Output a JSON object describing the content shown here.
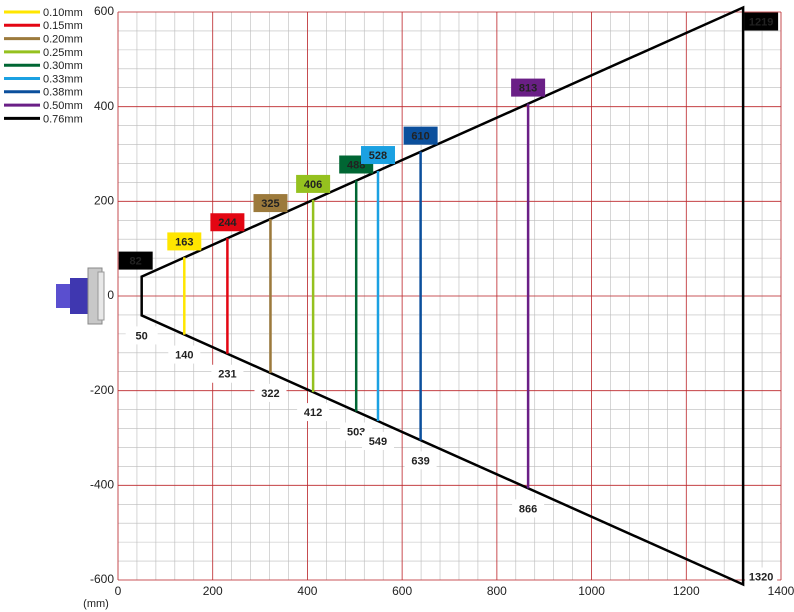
{
  "chart_data": {
    "type": "reading-field",
    "x_unit_label": "(mm)",
    "xlim": [
      0,
      1400
    ],
    "xticks": [
      0,
      200,
      400,
      600,
      800,
      1000,
      1200,
      1400
    ],
    "ylim": [
      -600,
      600
    ],
    "yticks": [
      -600,
      -400,
      -200,
      0,
      200,
      400,
      600
    ],
    "grid": true,
    "legend": "top-left",
    "series": [
      {
        "name": "0.10mm",
        "color": "#ffe600",
        "distances": [
          140
        ],
        "widths": [
          163
        ]
      },
      {
        "name": "0.15mm",
        "color": "#e30613",
        "distances": [
          231
        ],
        "widths": [
          244
        ]
      },
      {
        "name": "0.20mm",
        "color": "#9c7a3c",
        "distances": [
          322
        ],
        "widths": [
          325
        ]
      },
      {
        "name": "0.25mm",
        "color": "#95c11f",
        "distances": [
          412
        ],
        "widths": [
          406
        ]
      },
      {
        "name": "0.30mm",
        "color": "#006633",
        "distances": [
          503
        ],
        "widths": [
          488
        ]
      },
      {
        "name": "0.33mm",
        "color": "#1ba1e2",
        "distances": [
          549
        ],
        "widths": [
          528
        ]
      },
      {
        "name": "0.38mm",
        "color": "#0b4f9c",
        "distances": [
          639
        ],
        "widths": [
          610
        ]
      },
      {
        "name": "0.50mm",
        "color": "#6a1f86",
        "distances": [
          866
        ],
        "widths": [
          813
        ]
      },
      {
        "name": "0.76mm",
        "color": "#000000",
        "distances": [
          50,
          1320
        ],
        "widths": [
          82,
          1219
        ]
      }
    ]
  }
}
